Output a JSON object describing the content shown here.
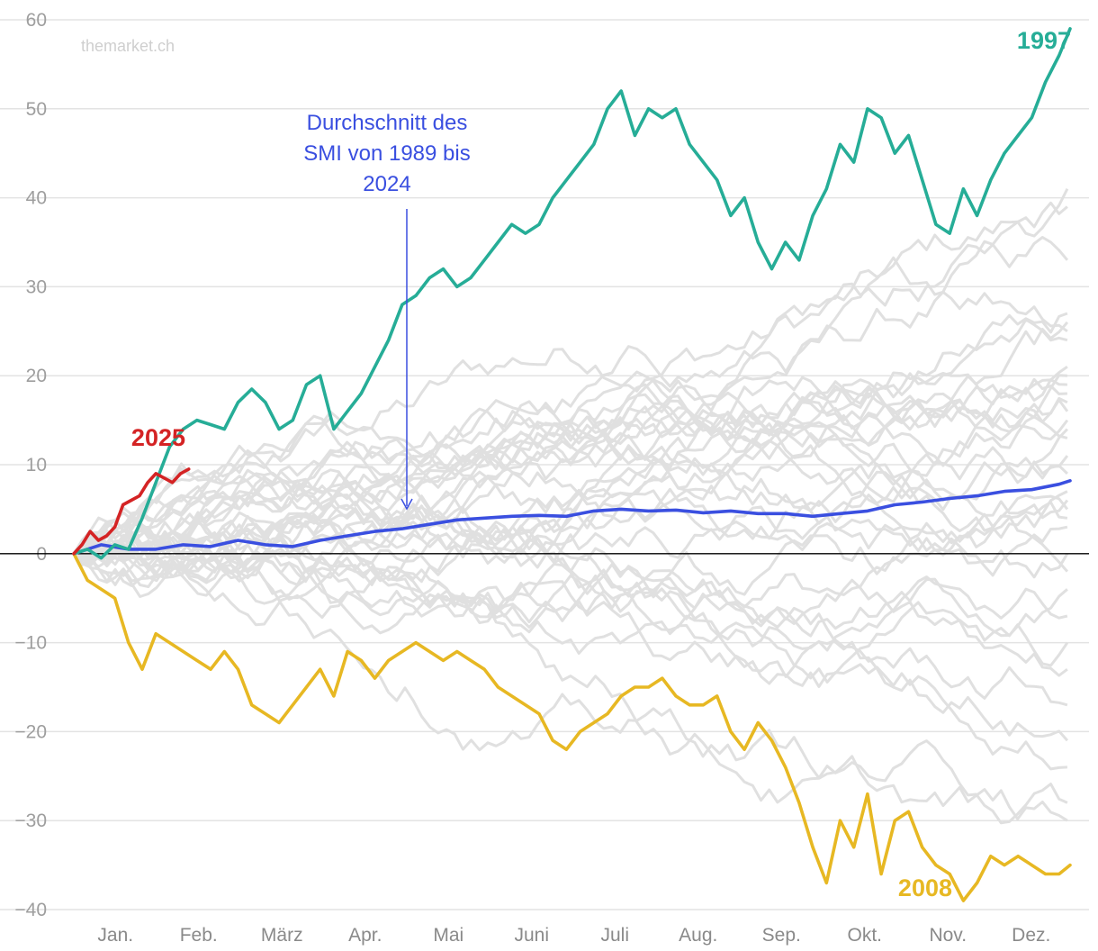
{
  "chart_data": {
    "type": "line",
    "title": "",
    "xlabel": "",
    "ylabel": "",
    "ylim": [
      -40,
      60
    ],
    "yticks": [
      60,
      50,
      40,
      30,
      20,
      10,
      0,
      -10,
      -20,
      -30,
      -40
    ],
    "ytick_labels": [
      "60",
      "50",
      "40",
      "30",
      "20",
      "10",
      "0",
      "−10",
      "−20",
      "−30",
      "−40"
    ],
    "xlim": [
      0,
      365
    ],
    "months": [
      "Jan.",
      "Feb.",
      "März",
      "Apr.",
      "Mai",
      "Juni",
      "Juli",
      "Aug.",
      "Sep.",
      "Okt.",
      "Nov.",
      "Dez."
    ],
    "grid": true,
    "watermark": "themarket.ch",
    "annotation": {
      "text_lines": [
        "Durchschnitt des",
        "SMI von 1989 bis",
        "2024"
      ],
      "points_to_day": 123,
      "color": "#3a4fe0"
    },
    "highlight_series": [
      {
        "name": "1997",
        "label": "1997",
        "color": "#26ad97",
        "x": [
          0,
          5,
          10,
          15,
          20,
          25,
          30,
          35,
          40,
          45,
          50,
          55,
          60,
          65,
          70,
          75,
          80,
          85,
          90,
          95,
          100,
          105,
          110,
          115,
          120,
          125,
          130,
          135,
          140,
          145,
          150,
          155,
          160,
          165,
          170,
          175,
          180,
          185,
          190,
          195,
          200,
          205,
          210,
          215,
          220,
          225,
          230,
          235,
          240,
          245,
          250,
          255,
          260,
          265,
          270,
          275,
          280,
          285,
          290,
          295,
          300,
          305,
          310,
          315,
          320,
          325,
          330,
          335,
          340,
          345,
          350,
          355,
          360,
          364
        ],
        "values": [
          0,
          0.5,
          -0.5,
          1,
          0.5,
          4,
          8,
          12,
          14,
          15,
          14.5,
          14,
          17,
          18.5,
          17,
          14,
          15,
          19,
          20,
          14,
          16,
          18,
          21,
          24,
          28,
          29,
          31,
          32,
          30,
          31,
          33,
          35,
          37,
          36,
          37,
          40,
          42,
          44,
          46,
          50,
          52,
          47,
          50,
          49,
          50,
          46,
          44,
          42,
          38,
          40,
          35,
          32,
          35,
          33,
          38,
          41,
          46,
          44,
          50,
          49,
          45,
          47,
          42,
          37,
          36,
          41,
          38,
          42,
          45,
          47,
          49,
          53,
          56,
          59
        ]
      },
      {
        "name": "2008",
        "label": "2008",
        "color": "#e7b823",
        "x": [
          0,
          5,
          10,
          15,
          20,
          25,
          30,
          35,
          40,
          45,
          50,
          55,
          60,
          65,
          70,
          75,
          80,
          85,
          90,
          95,
          100,
          105,
          110,
          115,
          120,
          125,
          130,
          135,
          140,
          145,
          150,
          155,
          160,
          165,
          170,
          175,
          180,
          185,
          190,
          195,
          200,
          205,
          210,
          215,
          220,
          225,
          230,
          235,
          240,
          245,
          250,
          255,
          260,
          265,
          270,
          275,
          280,
          285,
          290,
          295,
          300,
          305,
          310,
          315,
          320,
          325,
          330,
          335,
          340,
          345,
          350,
          355,
          360,
          364
        ],
        "values": [
          0,
          -3,
          -4,
          -5,
          -10,
          -13,
          -9,
          -10,
          -11,
          -12,
          -13,
          -11,
          -13,
          -17,
          -18,
          -19,
          -17,
          -15,
          -13,
          -16,
          -11,
          -12,
          -14,
          -12,
          -11,
          -10,
          -11,
          -12,
          -11,
          -12,
          -13,
          -15,
          -16,
          -17,
          -18,
          -21,
          -22,
          -20,
          -19,
          -18,
          -16,
          -15,
          -15,
          -14,
          -16,
          -17,
          -17,
          -16,
          -20,
          -22,
          -19,
          -21,
          -24,
          -28,
          -33,
          -37,
          -30,
          -33,
          -27,
          -36,
          -30,
          -29,
          -33,
          -35,
          -36,
          -39,
          -37,
          -34,
          -35,
          -34,
          -35,
          -36,
          -36,
          -35
        ]
      },
      {
        "name": "2025",
        "label": "2025",
        "color": "#d42324",
        "x": [
          0,
          3,
          6,
          9,
          12,
          15,
          18,
          21,
          24,
          27,
          30,
          33,
          36,
          39,
          42
        ],
        "values": [
          0,
          1,
          2.5,
          1.5,
          2,
          3,
          5.5,
          6,
          6.5,
          8,
          9,
          8.5,
          8,
          9,
          9.5
        ]
      },
      {
        "name": "Durchschnitt 1989-2024",
        "label": "",
        "color": "#3a4fe0",
        "x": [
          0,
          10,
          20,
          30,
          40,
          50,
          60,
          70,
          80,
          90,
          100,
          110,
          120,
          130,
          140,
          150,
          160,
          170,
          180,
          190,
          200,
          210,
          220,
          230,
          240,
          250,
          260,
          270,
          280,
          290,
          300,
          310,
          320,
          330,
          340,
          350,
          360,
          364
        ],
        "values": [
          0,
          1,
          0.5,
          0.5,
          1,
          0.8,
          1.5,
          1,
          0.8,
          1.5,
          2,
          2.5,
          2.8,
          3.3,
          3.8,
          4,
          4.2,
          4.3,
          4.2,
          4.8,
          5,
          4.8,
          4.9,
          4.6,
          4.8,
          4.5,
          4.5,
          4.2,
          4.5,
          4.8,
          5.5,
          5.8,
          6.2,
          6.5,
          7,
          7.2,
          7.8,
          8.2
        ]
      }
    ],
    "background_series_count": 34,
    "background_series_final_values": [
      41,
      39,
      33,
      27,
      26,
      25,
      24,
      21,
      20,
      19,
      18,
      17,
      16,
      15,
      14,
      13,
      11,
      9,
      7,
      6,
      5,
      4,
      3,
      0,
      -2,
      -4,
      -7,
      -10,
      -13,
      -17,
      -21,
      -24,
      -28,
      -30
    ],
    "background_color": "#e0e0e0"
  }
}
